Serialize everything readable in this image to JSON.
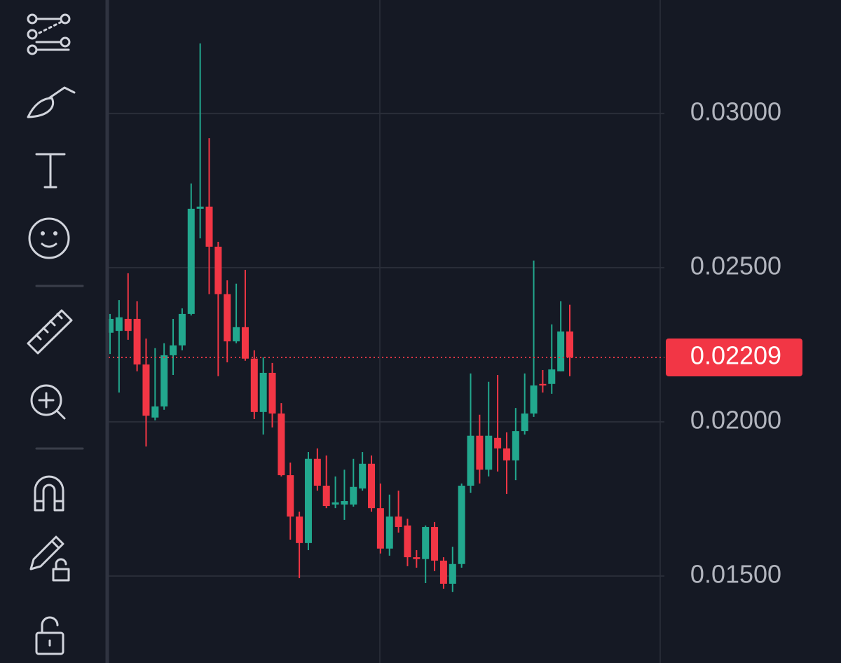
{
  "chart_data": {
    "type": "candlestick",
    "open": [
      0.02289,
      0.02295,
      0.02334,
      0.02334,
      0.02186,
      0.02014,
      0.0205,
      0.02216,
      0.02248,
      0.0235,
      0.02691,
      0.02698,
      0.02568,
      0.02414,
      0.02261,
      0.02307,
      0.02205,
      0.02032,
      0.02159,
      0.02027,
      0.01827,
      0.01693,
      0.01607,
      0.0188,
      0.01793,
      0.01732,
      0.01732,
      0.01732,
      0.01784,
      0.01864,
      0.0172,
      0.01589,
      0.01693,
      0.01664,
      0.01561,
      0.01555,
      0.01659,
      0.0155,
      0.01475,
      0.01539,
      0.01793,
      0.01955,
      0.01845,
      0.01948,
      0.01914,
      0.01875,
      0.0197,
      0.02027,
      0.02123,
      0.02123,
      0.02164,
      0.02293
    ],
    "high": [
      0.0235,
      0.02395,
      0.02482,
      0.02391,
      0.0227,
      0.02239,
      0.02255,
      0.02334,
      0.02368,
      0.02773,
      0.03227,
      0.0292,
      0.02584,
      0.02459,
      0.02448,
      0.02493,
      0.02232,
      0.02209,
      0.02191,
      0.02061,
      0.01868,
      0.01709,
      0.01902,
      0.01914,
      0.01891,
      0.01823,
      0.01845,
      0.0188,
      0.01902,
      0.01891,
      0.018,
      0.01764,
      0.01777,
      0.01686,
      0.01584,
      0.01664,
      0.01675,
      0.01561,
      0.01595,
      0.018,
      0.02157,
      0.02023,
      0.0213,
      0.02152,
      0.01966,
      0.02045,
      0.02157,
      0.02523,
      0.02168,
      0.02316,
      0.02391,
      0.0238
    ],
    "low": [
      0.0222,
      0.02095,
      0.02266,
      0.02164,
      0.0192,
      0.02005,
      0.02039,
      0.02152,
      0.02232,
      0.02345,
      0.02595,
      0.02414,
      0.02148,
      0.02193,
      0.02255,
      0.02198,
      0.02009,
      0.01959,
      0.01982,
      0.01823,
      0.01618,
      0.01493,
      0.01584,
      0.01777,
      0.0172,
      0.0172,
      0.01682,
      0.01725,
      0.01777,
      0.01709,
      0.01573,
      0.01566,
      0.01641,
      0.01532,
      0.01527,
      0.01477,
      0.01516,
      0.01459,
      0.01448,
      0.01527,
      0.0177,
      0.018,
      0.01823,
      0.01839,
      0.01766,
      0.01811,
      0.01959,
      0.02016,
      0.02095,
      0.02091,
      0.02164,
      0.02148
    ],
    "close": [
      0.02334,
      0.02339,
      0.02295,
      0.02186,
      0.0202,
      0.0205,
      0.02216,
      0.02248,
      0.0235,
      0.02691,
      0.02698,
      0.02568,
      0.02414,
      0.02261,
      0.02307,
      0.02205,
      0.02032,
      0.02159,
      0.02027,
      0.01827,
      0.01693,
      0.01607,
      0.0188,
      0.01793,
      0.01727,
      0.01739,
      0.01743,
      0.01789,
      0.01864,
      0.0172,
      0.01589,
      0.01693,
      0.01659,
      0.01561,
      0.01555,
      0.01659,
      0.0155,
      0.01475,
      0.01539,
      0.01793,
      0.01955,
      0.01845,
      0.01955,
      0.01914,
      0.01875,
      0.0197,
      0.02027,
      0.02118,
      0.02118,
      0.0217,
      0.02293,
      0.02209
    ],
    "up_color": "#22a88e",
    "down_color": "#f23645",
    "last_price": 0.02209,
    "ylim": [
      0.01218,
      0.03368
    ],
    "yticks": [
      {
        "value": 0.015,
        "label": "0.01500"
      },
      {
        "value": 0.02,
        "label": "0.02000"
      },
      {
        "value": 0.025,
        "label": "0.02500"
      },
      {
        "value": 0.03,
        "label": "0.03000"
      }
    ],
    "grid": true
  }
}
